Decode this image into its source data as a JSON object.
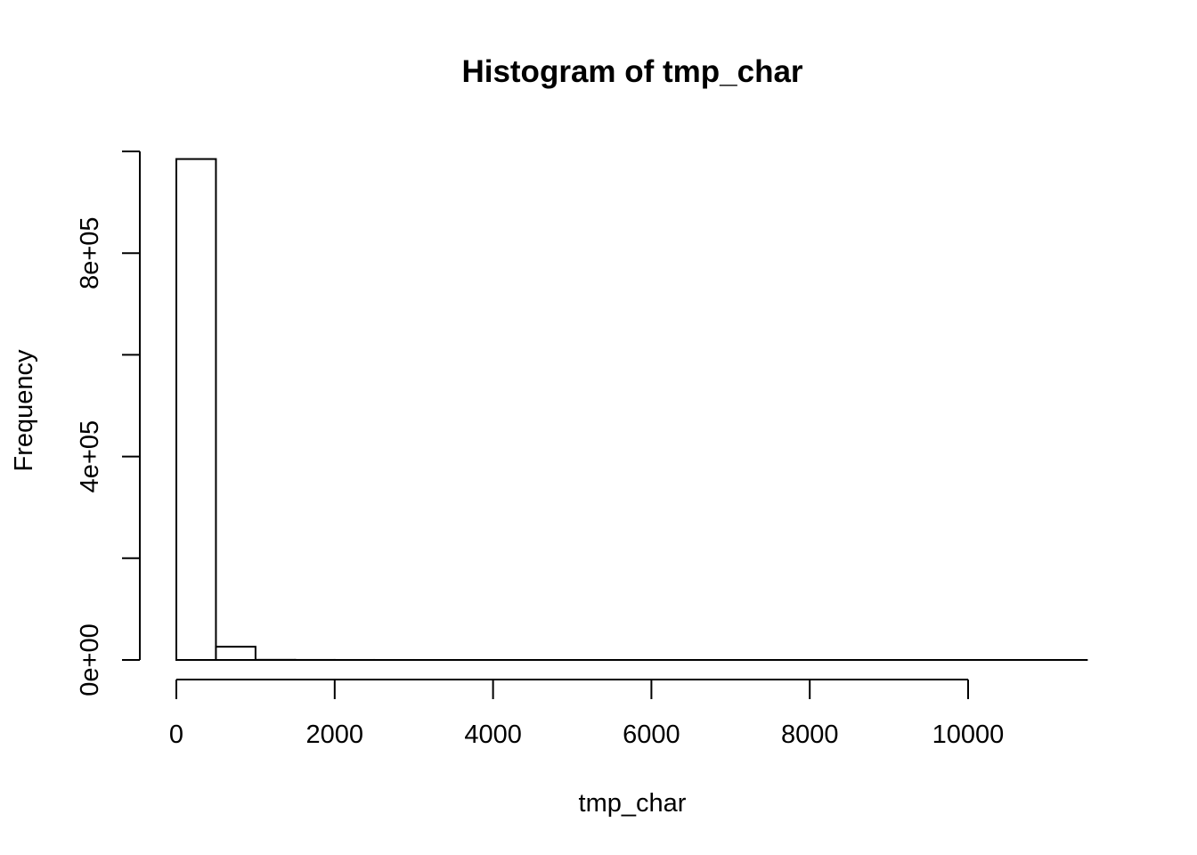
{
  "chart_data": {
    "type": "bar",
    "title": "Histogram of tmp_char",
    "xlabel": "tmp_char",
    "ylabel": "Frequency",
    "xlim": [
      0,
      11500
    ],
    "ylim": [
      0,
      1000000
    ],
    "x_ticks": [
      0,
      2000,
      4000,
      6000,
      8000,
      10000
    ],
    "x_tick_labels": [
      "0",
      "2000",
      "4000",
      "6000",
      "8000",
      "10000"
    ],
    "y_ticks": [
      0,
      200000,
      400000,
      600000,
      800000,
      1000000
    ],
    "y_tick_labels": [
      {
        "value": 0,
        "label": "0e+00"
      },
      {
        "value": 400000,
        "label": "4e+05"
      },
      {
        "value": 800000,
        "label": "8e+05"
      }
    ],
    "bins": [
      {
        "x0": 0,
        "x1": 500,
        "count": 985000
      },
      {
        "x0": 500,
        "x1": 1000,
        "count": 26000
      },
      {
        "x0": 1000,
        "x1": 1500,
        "count": 300
      },
      {
        "x0": 1500,
        "x1": 2000,
        "count": 100
      },
      {
        "x0": 2000,
        "x1": 2500,
        "count": 50
      },
      {
        "x0": 2500,
        "x1": 3000,
        "count": 20
      },
      {
        "x0": 3000,
        "x1": 3500,
        "count": 10
      },
      {
        "x0": 3500,
        "x1": 4000,
        "count": 5
      },
      {
        "x0": 4000,
        "x1": 4500,
        "count": 3
      },
      {
        "x0": 4500,
        "x1": 5000,
        "count": 2
      },
      {
        "x0": 5000,
        "x1": 5500,
        "count": 2
      },
      {
        "x0": 5500,
        "x1": 6000,
        "count": 1
      },
      {
        "x0": 6000,
        "x1": 6500,
        "count": 1
      },
      {
        "x0": 6500,
        "x1": 7000,
        "count": 1
      },
      {
        "x0": 7000,
        "x1": 7500,
        "count": 1
      },
      {
        "x0": 7500,
        "x1": 8000,
        "count": 1
      },
      {
        "x0": 8000,
        "x1": 8500,
        "count": 1
      },
      {
        "x0": 8500,
        "x1": 9000,
        "count": 1
      },
      {
        "x0": 9000,
        "x1": 9500,
        "count": 1
      },
      {
        "x0": 9500,
        "x1": 10000,
        "count": 1
      },
      {
        "x0": 10000,
        "x1": 10500,
        "count": 1
      },
      {
        "x0": 10500,
        "x1": 11000,
        "count": 1
      },
      {
        "x0": 11000,
        "x1": 11500,
        "count": 1
      }
    ],
    "grid": false,
    "legend": "none"
  }
}
